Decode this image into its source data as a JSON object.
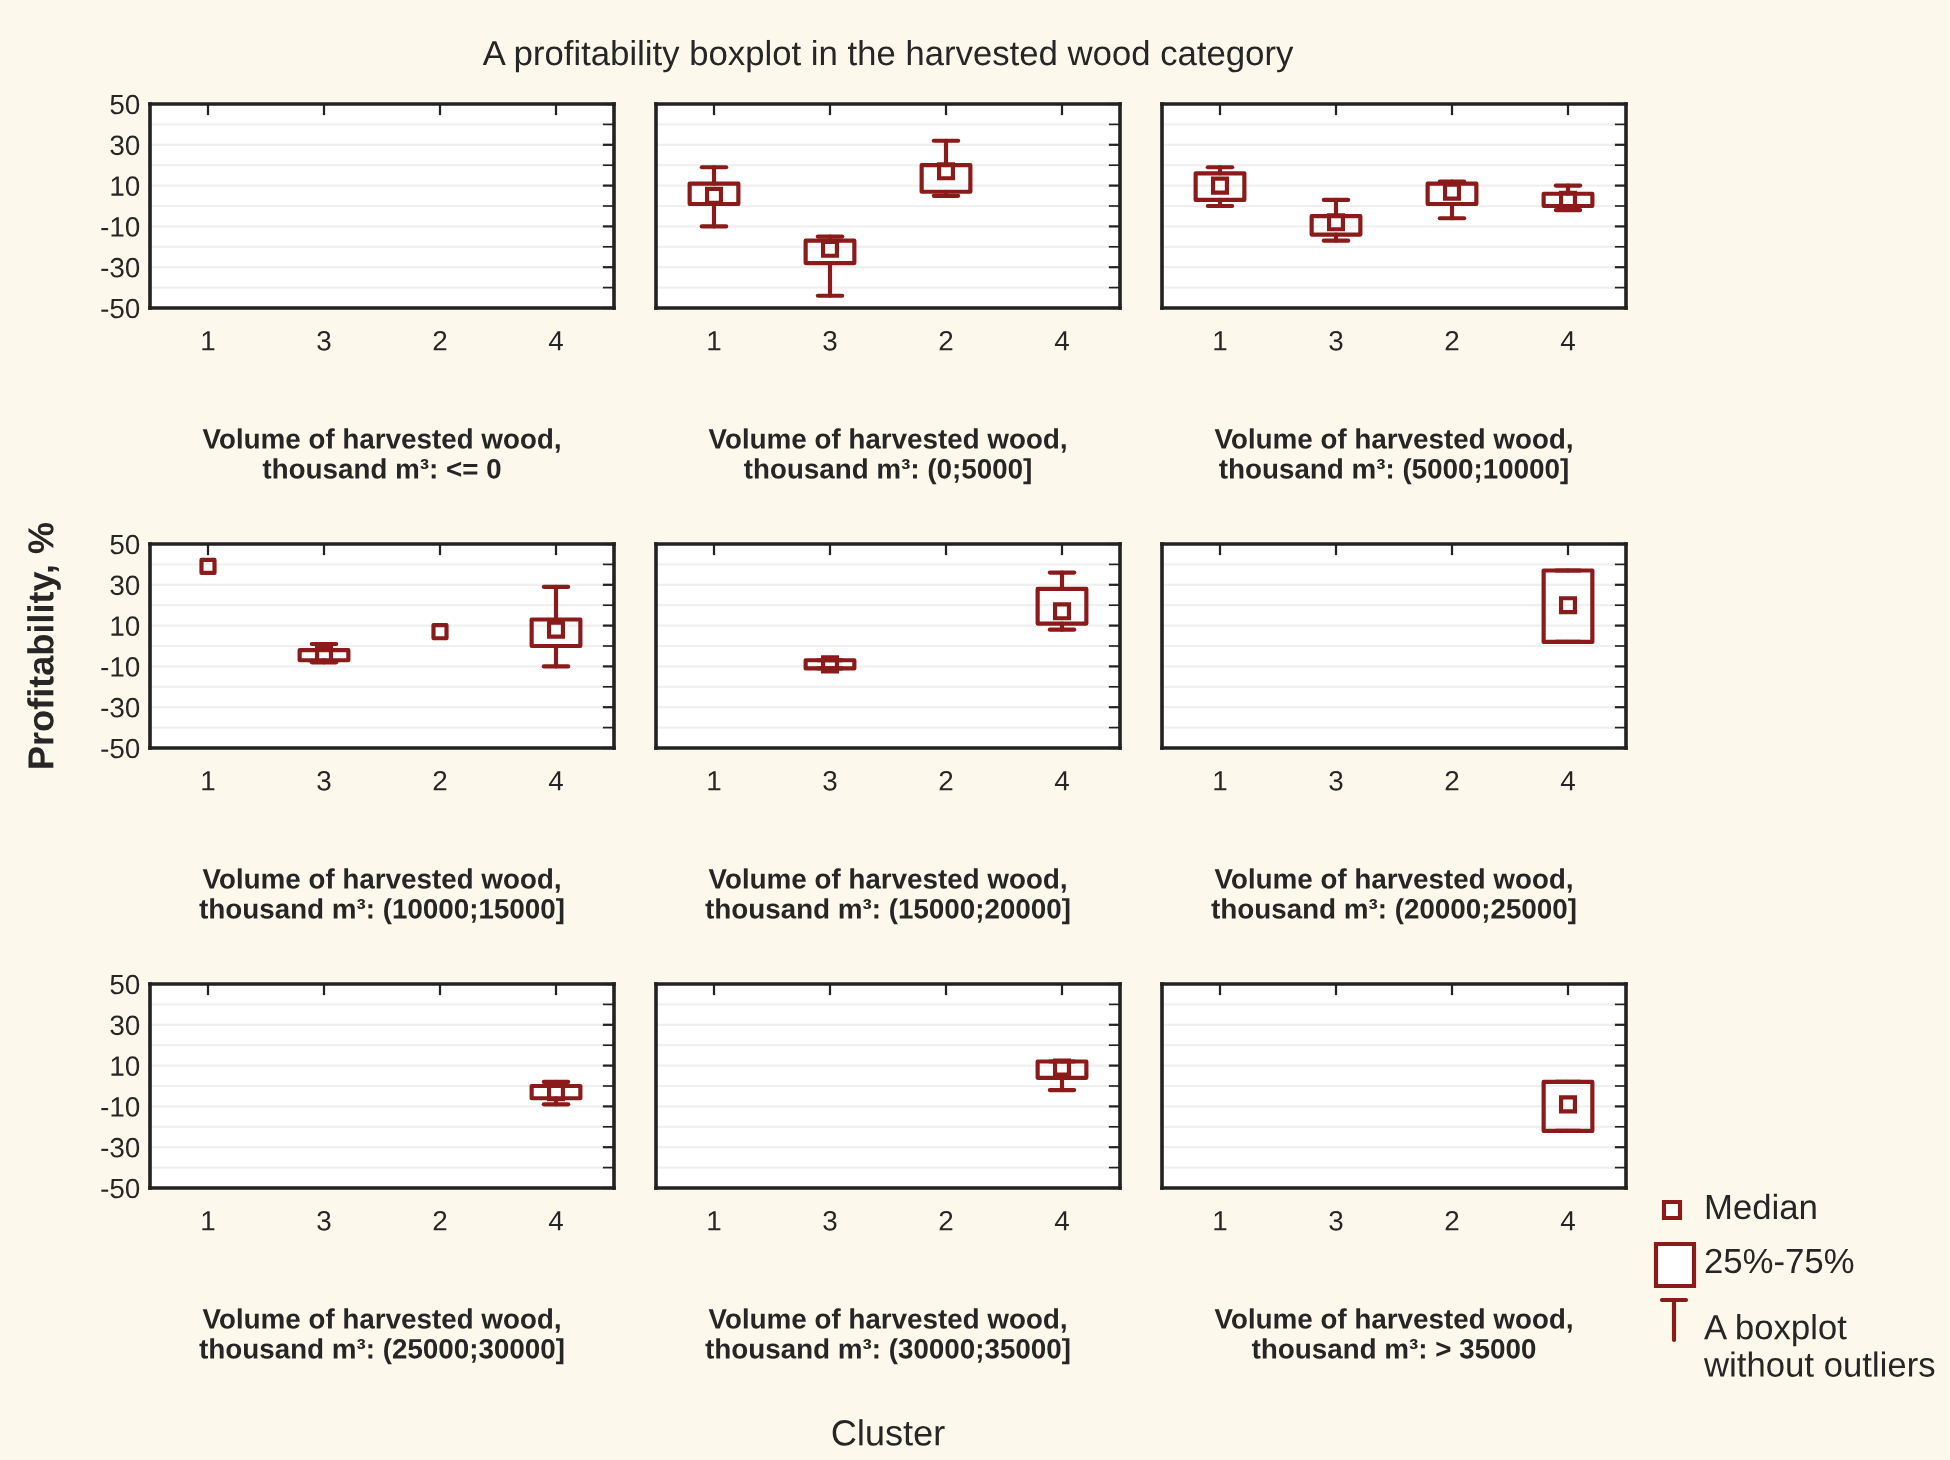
{
  "chart_data": [
    {
      "type": "box",
      "xlabel": "Volume of harvested wood,\nthousand m³: <= 0",
      "categories": [
        "1",
        "3",
        "2",
        "4"
      ],
      "color": "#8b1a1a",
      "boxes": [
        null,
        null,
        null,
        null
      ],
      "ylim": [
        -50,
        50
      ],
      "yticks": [
        -50,
        -30,
        -10,
        10,
        30,
        50
      ],
      "grid": "y"
    },
    {
      "type": "box",
      "title": "A profitability boxplot in the harvested wood category",
      "xlabel": "Volume of harvested wood,\nthousand m³: (0;5000]",
      "categories": [
        "1",
        "3",
        "2",
        "4"
      ],
      "color": "#8b1a1a",
      "boxes": [
        {
          "low": -10,
          "q1": 1,
          "median": 5,
          "q3": 11,
          "high": 19
        },
        {
          "low": -44,
          "q1": -28,
          "median": -21,
          "q3": -17,
          "high": -15
        },
        {
          "low": 5,
          "q1": 7,
          "median": 17,
          "q3": 20,
          "high": 32
        },
        null
      ],
      "ylim": [
        -50,
        50
      ],
      "yticks": [
        -50,
        -30,
        -10,
        10,
        30,
        50
      ],
      "grid": "y",
      "tick_labels": "x"
    },
    {
      "type": "box",
      "xlabel": "Volume of harvested wood,\nthousand m³: (5000;10000]",
      "categories": [
        "1",
        "3",
        "2",
        "4"
      ],
      "color": "#8b1a1a",
      "boxes": [
        {
          "low": 0,
          "q1": 3,
          "median": 10,
          "q3": 16,
          "high": 19
        },
        {
          "low": -17,
          "q1": -14,
          "median": -8,
          "q3": -5,
          "high": 3
        },
        {
          "low": -6,
          "q1": 1,
          "median": 7,
          "q3": 11,
          "high": 12
        },
        {
          "low": -2,
          "q1": 0,
          "median": 3,
          "q3": 6,
          "high": 10
        }
      ],
      "ylim": [
        -50,
        50
      ],
      "yticks": [
        -50,
        -30,
        -10,
        10,
        30,
        50
      ],
      "grid": "y",
      "tick_labels": "x"
    },
    {
      "type": "box",
      "ylabel": "Profitability, %",
      "xlabel": "Volume of harvested wood,\nthousand m³: (10000;15000]",
      "categories": [
        "1",
        "3",
        "2",
        "4"
      ],
      "color": "#8b1a1a",
      "boxes": [
        null,
        {
          "low": -8,
          "q1": -7,
          "median": -4,
          "q3": -2,
          "high": 1
        },
        null,
        {
          "low": -10,
          "q1": 0,
          "median": 8,
          "q3": 13,
          "high": 29
        }
      ],
      "series": [
        {
          "type": "scatter",
          "marker": "square",
          "x": [
            "1",
            "2"
          ],
          "values": [
            39,
            7
          ]
        }
      ],
      "ylim": [
        -50,
        50
      ],
      "yticks": [
        -50,
        -30,
        -10,
        10,
        30,
        50
      ],
      "grid": "y"
    },
    {
      "type": "box",
      "xlabel": "Volume of harvested wood,\nthousand m³: (15000;20000]",
      "categories": [
        "1",
        "3",
        "2",
        "4"
      ],
      "color": "#8b1a1a",
      "boxes": [
        null,
        {
          "low": -11,
          "q1": -11,
          "median": -9,
          "q3": -7,
          "high": -7
        },
        null,
        {
          "low": 8,
          "q1": 11,
          "median": 17,
          "q3": 28,
          "high": 36
        }
      ],
      "ylim": [
        -50,
        50
      ],
      "yticks": [
        -50,
        -30,
        -10,
        10,
        30,
        50
      ],
      "grid": "y",
      "tick_labels": "x"
    },
    {
      "type": "box",
      "xlabel": "Volume of harvested wood,\nthousand m³: (20000;25000]",
      "categories": [
        "1",
        "3",
        "2",
        "4"
      ],
      "color": "#8b1a1a",
      "boxes": [
        null,
        null,
        null,
        {
          "low": 2,
          "q1": 2,
          "median": 20,
          "q3": 37,
          "high": 37
        }
      ],
      "ylim": [
        -50,
        50
      ],
      "yticks": [
        -50,
        -30,
        -10,
        10,
        30,
        50
      ],
      "grid": "y",
      "tick_labels": "x"
    },
    {
      "type": "box",
      "xlabel": "Volume of harvested wood,\nthousand m³: (25000;30000]",
      "categories": [
        "1",
        "3",
        "2",
        "4"
      ],
      "color": "#8b1a1a",
      "boxes": [
        null,
        null,
        null,
        {
          "low": -9,
          "q1": -6,
          "median": -3,
          "q3": 0,
          "high": 2
        }
      ],
      "ylim": [
        -50,
        50
      ],
      "yticks": [
        -50,
        -30,
        -10,
        10,
        30,
        50
      ],
      "grid": "y"
    },
    {
      "type": "box",
      "xlabel": "Volume of harvested wood,\nthousand m³: (30000;35000]",
      "annotations": [
        "Cluster"
      ],
      "categories": [
        "1",
        "3",
        "2",
        "4"
      ],
      "color": "#8b1a1a",
      "boxes": [
        null,
        null,
        null,
        {
          "low": -2,
          "q1": 4,
          "median": 9,
          "q3": 12,
          "high": 12
        }
      ],
      "ylim": [
        -50,
        50
      ],
      "yticks": [
        -50,
        -30,
        -10,
        10,
        30,
        50
      ],
      "grid": "y",
      "tick_labels": "x"
    },
    {
      "type": "box",
      "xlabel": "Volume of harvested wood,\nthousand m³: > 35000",
      "annotations": [
        "Median",
        "25%-75%",
        "A boxplot\nwithout outliers"
      ],
      "categories": [
        "1",
        "3",
        "2",
        "4"
      ],
      "color": "#8b1a1a",
      "boxes": [
        null,
        null,
        null,
        {
          "low": -22,
          "q1": -22,
          "median": -9,
          "q3": 2,
          "high": 2
        }
      ],
      "ylim": [
        -50,
        50
      ],
      "yticks": [
        -50,
        -30,
        -10,
        10,
        30,
        50
      ],
      "grid": "y",
      "tick_labels": "x"
    }
  ]
}
